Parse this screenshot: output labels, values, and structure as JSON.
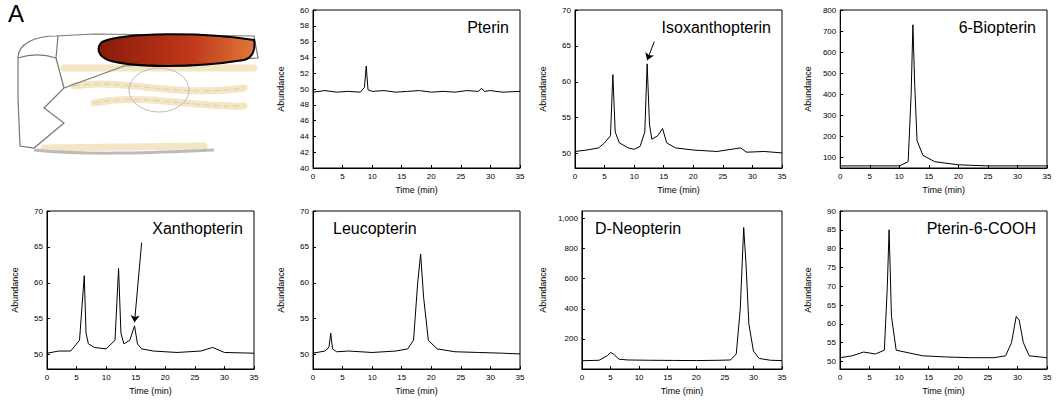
{
  "label": "A",
  "chart_data": [
    {
      "type": "line",
      "title": "Pterin",
      "x_label": "Time (min)",
      "y_label": "Abundance",
      "color": "#000000",
      "grid": false,
      "xlim": [
        0,
        35
      ],
      "xticks": [
        0,
        5,
        10,
        15,
        20,
        25,
        30,
        35
      ],
      "ylim": [
        40,
        60
      ],
      "yticks": [
        40,
        42,
        44,
        46,
        48,
        50,
        52,
        54,
        56,
        58,
        60
      ],
      "x": [
        0,
        2,
        4,
        6,
        8,
        8.7,
        9,
        9.3,
        10,
        12,
        14,
        16,
        18,
        20,
        22,
        24,
        26,
        28,
        28.5,
        29,
        30,
        32,
        35
      ],
      "values": [
        49.6,
        49.8,
        49.6,
        49.7,
        49.6,
        50.2,
        52.9,
        49.9,
        49.7,
        49.8,
        49.6,
        49.7,
        49.8,
        49.6,
        49.7,
        49.6,
        49.8,
        49.7,
        50.1,
        49.7,
        49.8,
        49.6,
        49.7
      ]
    },
    {
      "type": "line",
      "title": "Isoxanthopterin",
      "x_label": "Time (min)",
      "y_label": "Abundance",
      "color": "#000000",
      "grid": false,
      "arrow_target": [
        12.2,
        63
      ],
      "xlim": [
        0,
        35
      ],
      "xticks": [
        0,
        5,
        10,
        15,
        20,
        25,
        30,
        35
      ],
      "ylim": [
        48,
        70
      ],
      "yticks": [
        50,
        55,
        60,
        65,
        70
      ],
      "x": [
        0,
        2,
        4,
        5,
        6,
        6.4,
        6.8,
        7.5,
        9,
        10,
        11,
        11.8,
        12.2,
        12.6,
        13,
        14,
        14.8,
        15.5,
        17,
        20,
        24,
        28,
        29,
        32,
        35
      ],
      "values": [
        50.3,
        50.5,
        50.8,
        51.5,
        52.5,
        61,
        53,
        51.5,
        50.8,
        50.6,
        51,
        53,
        62.5,
        54,
        52,
        52.5,
        53.5,
        51.5,
        50.8,
        50.5,
        50.3,
        50.8,
        50.2,
        50.3,
        50.1
      ]
    },
    {
      "type": "line",
      "title": "6-Biopterin",
      "x_label": "Time (min)",
      "y_label": "Abundance",
      "color": "#000000",
      "grid": false,
      "xlim": [
        0,
        35
      ],
      "xticks": [
        0,
        5,
        10,
        15,
        20,
        25,
        30,
        35
      ],
      "ylim": [
        50,
        800
      ],
      "yticks": [
        100,
        200,
        300,
        400,
        500,
        600,
        700,
        800
      ],
      "x": [
        0,
        5,
        10,
        11.5,
        12,
        12.3,
        12.6,
        13,
        14,
        16,
        20,
        25,
        30,
        35
      ],
      "values": [
        60,
        60,
        60,
        80,
        400,
        730,
        450,
        180,
        110,
        80,
        65,
        60,
        60,
        60
      ]
    },
    {
      "type": "line",
      "title": "Xanthopterin",
      "x_label": "Time (min)",
      "y_label": "Abundance",
      "color": "#000000",
      "grid": false,
      "arrow_target": [
        14.8,
        54.5
      ],
      "xlim": [
        0,
        35
      ],
      "xticks": [
        0,
        5,
        10,
        15,
        20,
        25,
        30,
        35
      ],
      "ylim": [
        48,
        70
      ],
      "yticks": [
        50,
        55,
        60,
        65,
        70
      ],
      "x": [
        0,
        2,
        4,
        5.5,
        6.3,
        6.6,
        7,
        8,
        10,
        11.5,
        12.1,
        12.5,
        13,
        14,
        14.8,
        15.3,
        16,
        18,
        22,
        26,
        28,
        30,
        35
      ],
      "values": [
        50.2,
        50.5,
        50.5,
        52,
        61,
        53,
        51.5,
        51,
        50.8,
        52,
        62,
        53,
        51.5,
        52,
        54,
        51.5,
        50.8,
        50.5,
        50.3,
        50.5,
        51,
        50.3,
        50.2
      ]
    },
    {
      "type": "line",
      "title": "Leucopterin",
      "x_label": "Time (min)",
      "y_label": "Abundance",
      "color": "#000000",
      "grid": false,
      "xlim": [
        0,
        35
      ],
      "xticks": [
        0,
        5,
        10,
        15,
        20,
        25,
        30,
        35
      ],
      "ylim": [
        48,
        70
      ],
      "yticks": [
        50,
        55,
        60,
        65,
        70
      ],
      "x": [
        0,
        2,
        2.7,
        3,
        3.3,
        4,
        6,
        10,
        14,
        16,
        17,
        17.7,
        18.2,
        18.7,
        19.5,
        21,
        24,
        28,
        32,
        35
      ],
      "values": [
        50.2,
        50.5,
        51,
        53,
        50.8,
        50.4,
        50.5,
        50.3,
        50.5,
        50.8,
        52,
        60,
        64,
        58,
        52,
        50.8,
        50.4,
        50.3,
        50.2,
        50.1
      ]
    },
    {
      "type": "line",
      "title": "D-Neopterin",
      "x_label": "Time (min)",
      "y_label": "Abundance",
      "color": "#000000",
      "grid": false,
      "xlim": [
        0,
        35
      ],
      "xticks": [
        0,
        5,
        10,
        15,
        20,
        25,
        30,
        35
      ],
      "ylim": [
        0,
        1050
      ],
      "yticks": [
        200,
        400,
        600,
        800,
        1000
      ],
      "x": [
        0,
        3,
        4.5,
        5,
        5.5,
        6.5,
        8,
        12,
        16,
        20,
        24,
        26,
        27,
        27.7,
        28.3,
        28.7,
        29.2,
        30,
        31,
        33,
        35
      ],
      "values": [
        55,
        58,
        90,
        110,
        100,
        65,
        60,
        58,
        57,
        56,
        58,
        60,
        100,
        400,
        940,
        700,
        300,
        120,
        70,
        58,
        56
      ]
    },
    {
      "type": "line",
      "title": "Pterin-6-COOH",
      "x_label": "Time (min)",
      "y_label": "Abundance",
      "color": "#000000",
      "grid": false,
      "xlim": [
        0,
        35
      ],
      "xticks": [
        0,
        5,
        10,
        15,
        20,
        25,
        30,
        35
      ],
      "ylim": [
        48,
        90
      ],
      "yticks": [
        50,
        55,
        60,
        65,
        70,
        75,
        80,
        85,
        90
      ],
      "x": [
        0,
        2,
        4,
        6,
        7.5,
        8,
        8.3,
        8.7,
        9.5,
        11,
        14,
        18,
        22,
        26,
        28,
        29,
        29.8,
        30.3,
        31,
        32,
        35
      ],
      "values": [
        51,
        51.5,
        52.5,
        52,
        53,
        70,
        85,
        62,
        53,
        52.5,
        51.5,
        51.2,
        51,
        51,
        51.5,
        55,
        62,
        61,
        55,
        51.5,
        51
      ]
    }
  ]
}
